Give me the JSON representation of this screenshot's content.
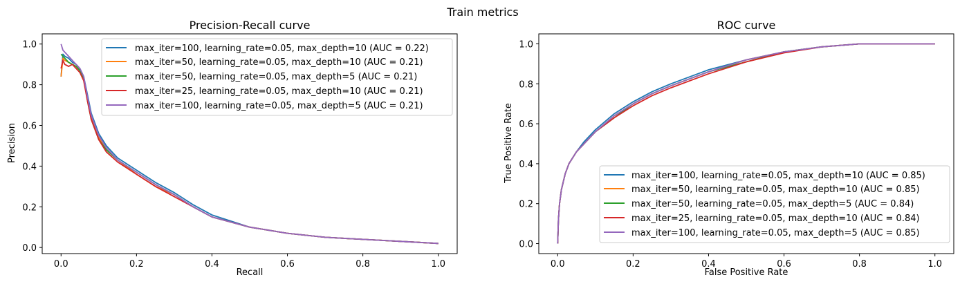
{
  "suptitle": "Train metrics",
  "chart_data": [
    {
      "type": "line",
      "title": "Precision-Recall curve",
      "xlabel": "Recall",
      "ylabel": "Precision",
      "xlim": [
        -0.05,
        1.05
      ],
      "ylim": [
        -0.03,
        1.05
      ],
      "xticks": [
        "0.0",
        "0.2",
        "0.4",
        "0.6",
        "0.8",
        "1.0"
      ],
      "yticks": [
        "0.0",
        "0.2",
        "0.4",
        "0.6",
        "0.8",
        "1.0"
      ],
      "legend_position": "top-right",
      "series": [
        {
          "name": "max_iter=100, learning_rate=0.05, max_depth=10 (AUC = 0.22)",
          "color": "#1f77b4",
          "x": [
            0.0,
            0.005,
            0.01,
            0.02,
            0.03,
            0.04,
            0.05,
            0.06,
            0.07,
            0.08,
            0.1,
            0.12,
            0.15,
            0.2,
            0.25,
            0.3,
            0.35,
            0.4,
            0.5,
            0.6,
            0.7,
            0.8,
            0.9,
            1.0
          ],
          "y": [
            0.84,
            0.95,
            0.94,
            0.93,
            0.91,
            0.9,
            0.88,
            0.84,
            0.75,
            0.66,
            0.56,
            0.5,
            0.44,
            0.38,
            0.32,
            0.27,
            0.21,
            0.16,
            0.1,
            0.07,
            0.05,
            0.04,
            0.03,
            0.02
          ]
        },
        {
          "name": "max_iter=50, learning_rate=0.05, max_depth=10 (AUC = 0.21)",
          "color": "#ff7f0e",
          "x": [
            0.0,
            0.005,
            0.01,
            0.02,
            0.03,
            0.04,
            0.05,
            0.06,
            0.07,
            0.08,
            0.1,
            0.12,
            0.15,
            0.2,
            0.25,
            0.3,
            0.35,
            0.4,
            0.5,
            0.6,
            0.7,
            0.8,
            0.9,
            1.0
          ],
          "y": [
            0.84,
            0.93,
            0.92,
            0.91,
            0.9,
            0.89,
            0.87,
            0.83,
            0.73,
            0.64,
            0.54,
            0.48,
            0.43,
            0.36,
            0.3,
            0.26,
            0.2,
            0.15,
            0.1,
            0.07,
            0.05,
            0.04,
            0.03,
            0.02
          ]
        },
        {
          "name": "max_iter=50, learning_rate=0.05, max_depth=5 (AUC = 0.21)",
          "color": "#2ca02c",
          "x": [
            0.0,
            0.005,
            0.01,
            0.02,
            0.03,
            0.04,
            0.05,
            0.06,
            0.07,
            0.08,
            0.1,
            0.12,
            0.15,
            0.2,
            0.25,
            0.3,
            0.35,
            0.4,
            0.5,
            0.6,
            0.7,
            0.8,
            0.9,
            1.0
          ],
          "y": [
            0.95,
            0.94,
            0.93,
            0.91,
            0.9,
            0.89,
            0.87,
            0.83,
            0.72,
            0.63,
            0.53,
            0.48,
            0.43,
            0.37,
            0.31,
            0.26,
            0.2,
            0.15,
            0.1,
            0.07,
            0.05,
            0.04,
            0.03,
            0.02
          ]
        },
        {
          "name": "max_iter=25, learning_rate=0.05, max_depth=10 (AUC = 0.21)",
          "color": "#d62728",
          "x": [
            0.0,
            0.005,
            0.01,
            0.02,
            0.03,
            0.04,
            0.05,
            0.06,
            0.07,
            0.08,
            0.1,
            0.12,
            0.15,
            0.2,
            0.25,
            0.3,
            0.35,
            0.4,
            0.5,
            0.6,
            0.7,
            0.8,
            0.9,
            1.0
          ],
          "y": [
            0.88,
            0.92,
            0.9,
            0.89,
            0.9,
            0.88,
            0.86,
            0.82,
            0.72,
            0.63,
            0.53,
            0.47,
            0.42,
            0.36,
            0.3,
            0.25,
            0.2,
            0.15,
            0.1,
            0.07,
            0.05,
            0.04,
            0.03,
            0.02
          ]
        },
        {
          "name": "max_iter=100, learning_rate=0.05, max_depth=5 (AUC = 0.21)",
          "color": "#9467bd",
          "x": [
            0.0,
            0.005,
            0.01,
            0.02,
            0.03,
            0.04,
            0.05,
            0.06,
            0.07,
            0.08,
            0.1,
            0.12,
            0.15,
            0.2,
            0.25,
            0.3,
            0.35,
            0.4,
            0.5,
            0.6,
            0.7,
            0.8,
            0.9,
            1.0
          ],
          "y": [
            1.0,
            0.97,
            0.96,
            0.94,
            0.92,
            0.9,
            0.88,
            0.84,
            0.74,
            0.65,
            0.55,
            0.49,
            0.43,
            0.37,
            0.31,
            0.26,
            0.2,
            0.15,
            0.1,
            0.07,
            0.05,
            0.04,
            0.03,
            0.02
          ]
        }
      ]
    },
    {
      "type": "line",
      "title": "ROC curve",
      "xlabel": "False Positive Rate",
      "ylabel": "True Positive Rate",
      "xlim": [
        -0.05,
        1.05
      ],
      "ylim": [
        -0.05,
        1.05
      ],
      "xticks": [
        "0.0",
        "0.2",
        "0.4",
        "0.6",
        "0.8",
        "1.0"
      ],
      "yticks": [
        "0.0",
        "0.2",
        "0.4",
        "0.6",
        "0.8",
        "1.0"
      ],
      "legend_position": "bottom-right",
      "series": [
        {
          "name": "max_iter=100, learning_rate=0.05, max_depth=10 (AUC = 0.85)",
          "color": "#1f77b4",
          "x": [
            0.0,
            0.002,
            0.005,
            0.01,
            0.02,
            0.03,
            0.05,
            0.07,
            0.1,
            0.15,
            0.2,
            0.25,
            0.3,
            0.4,
            0.5,
            0.6,
            0.7,
            0.8,
            0.9,
            1.0
          ],
          "y": [
            0.0,
            0.12,
            0.2,
            0.27,
            0.35,
            0.4,
            0.46,
            0.51,
            0.57,
            0.65,
            0.71,
            0.76,
            0.8,
            0.87,
            0.92,
            0.96,
            0.985,
            1.0,
            1.0,
            1.0
          ]
        },
        {
          "name": "max_iter=50, learning_rate=0.05, max_depth=10 (AUC = 0.85)",
          "color": "#ff7f0e",
          "x": [
            0.0,
            0.002,
            0.005,
            0.01,
            0.02,
            0.03,
            0.05,
            0.07,
            0.1,
            0.15,
            0.2,
            0.25,
            0.3,
            0.4,
            0.5,
            0.6,
            0.7,
            0.8,
            0.9,
            1.0
          ],
          "y": [
            0.0,
            0.12,
            0.2,
            0.27,
            0.35,
            0.4,
            0.46,
            0.5,
            0.56,
            0.64,
            0.7,
            0.75,
            0.79,
            0.86,
            0.92,
            0.96,
            0.985,
            1.0,
            1.0,
            1.0
          ]
        },
        {
          "name": "max_iter=50, learning_rate=0.05, max_depth=5 (AUC = 0.84)",
          "color": "#2ca02c",
          "x": [
            0.0,
            0.002,
            0.005,
            0.01,
            0.02,
            0.03,
            0.05,
            0.07,
            0.1,
            0.15,
            0.2,
            0.25,
            0.3,
            0.4,
            0.5,
            0.6,
            0.7,
            0.8,
            0.9,
            1.0
          ],
          "y": [
            0.0,
            0.12,
            0.2,
            0.27,
            0.35,
            0.4,
            0.46,
            0.5,
            0.56,
            0.63,
            0.7,
            0.75,
            0.79,
            0.86,
            0.91,
            0.96,
            0.985,
            1.0,
            1.0,
            1.0
          ]
        },
        {
          "name": "max_iter=25, learning_rate=0.05, max_depth=10 (AUC = 0.84)",
          "color": "#d62728",
          "x": [
            0.0,
            0.002,
            0.005,
            0.01,
            0.02,
            0.03,
            0.05,
            0.07,
            0.1,
            0.15,
            0.2,
            0.25,
            0.3,
            0.4,
            0.5,
            0.6,
            0.7,
            0.8,
            0.9,
            1.0
          ],
          "y": [
            0.0,
            0.12,
            0.2,
            0.27,
            0.35,
            0.4,
            0.46,
            0.5,
            0.56,
            0.63,
            0.69,
            0.74,
            0.78,
            0.85,
            0.91,
            0.955,
            0.985,
            1.0,
            1.0,
            1.0
          ]
        },
        {
          "name": "max_iter=100, learning_rate=0.05, max_depth=5 (AUC = 0.85)",
          "color": "#9467bd",
          "x": [
            0.0,
            0.002,
            0.005,
            0.01,
            0.02,
            0.03,
            0.05,
            0.07,
            0.1,
            0.15,
            0.2,
            0.25,
            0.3,
            0.4,
            0.5,
            0.6,
            0.7,
            0.8,
            0.9,
            1.0
          ],
          "y": [
            0.0,
            0.12,
            0.2,
            0.27,
            0.35,
            0.4,
            0.46,
            0.5,
            0.56,
            0.64,
            0.7,
            0.75,
            0.79,
            0.86,
            0.92,
            0.96,
            0.985,
            1.0,
            1.0,
            1.0
          ]
        }
      ]
    }
  ]
}
